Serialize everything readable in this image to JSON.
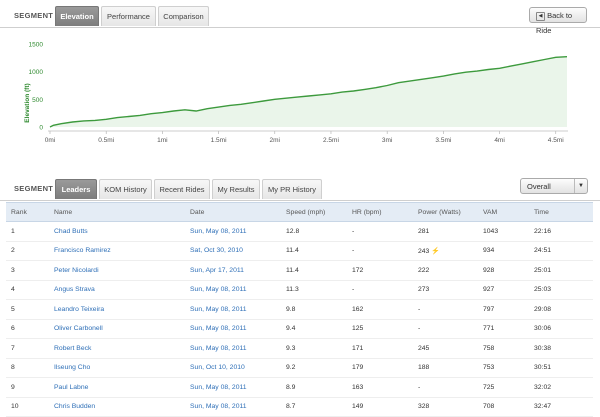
{
  "top_tabs": {
    "label": "SEGMENT",
    "tabs": [
      "Elevation",
      "Performance",
      "Comparison"
    ],
    "active": "Elevation",
    "back_button": "Back to Ride"
  },
  "chart_data": {
    "type": "area",
    "ylabel": "Elevation (ft)",
    "x_ticks": [
      "0mi",
      "0.5mi",
      "1mi",
      "1.5mi",
      "2mi",
      "2.5mi",
      "3mi",
      "3.5mi",
      "4mi",
      "4.5mi"
    ],
    "y_ticks": [
      "0",
      "500",
      "1000",
      "1500"
    ],
    "xlim": [
      0,
      4.6
    ],
    "ylim": [
      0,
      1500
    ],
    "grid": false,
    "colors": {
      "line": "#3d9a3d",
      "fill": "#eaf5ea"
    },
    "x": [
      0,
      0.03,
      0.1,
      0.2,
      0.3,
      0.4,
      0.5,
      0.6,
      0.7,
      0.8,
      0.9,
      1.0,
      1.1,
      1.2,
      1.3,
      1.4,
      1.5,
      1.6,
      1.7,
      1.8,
      1.9,
      2.0,
      2.1,
      2.2,
      2.3,
      2.4,
      2.5,
      2.6,
      2.7,
      2.8,
      2.9,
      3.0,
      3.1,
      3.2,
      3.3,
      3.4,
      3.5,
      3.6,
      3.7,
      3.8,
      3.9,
      4.0,
      4.1,
      4.2,
      4.3,
      4.4,
      4.5,
      4.6
    ],
    "y": [
      0,
      30,
      60,
      90,
      110,
      120,
      140,
      170,
      190,
      210,
      240,
      260,
      290,
      310,
      290,
      330,
      360,
      390,
      410,
      440,
      470,
      500,
      520,
      540,
      560,
      580,
      600,
      630,
      650,
      680,
      710,
      750,
      800,
      830,
      860,
      890,
      920,
      960,
      990,
      1010,
      1040,
      1060,
      1100,
      1140,
      1180,
      1220,
      1260,
      1270
    ]
  },
  "leaderboard": {
    "label": "SEGMENT",
    "tabs": [
      "Leaders",
      "KOM History",
      "Recent Rides",
      "My Results",
      "My PR History"
    ],
    "active": "Leaders",
    "filter": "Overall",
    "columns": [
      "Rank",
      "Name",
      "Date",
      "Speed (mph)",
      "HR (bpm)",
      "Power (Watts)",
      "VAM",
      "Time"
    ],
    "rows": [
      [
        "1",
        "Chad Butts",
        "Sun, May 08, 2011",
        "12.8",
        "-",
        "281",
        "1043",
        "22:16"
      ],
      [
        "2",
        "Francisco Ramirez",
        "Sat, Oct 30, 2010",
        "11.4",
        "-",
        "243",
        "934",
        "24:51"
      ],
      [
        "3",
        "Peter Nicolardi",
        "Sun, Apr 17, 2011",
        "11.4",
        "172",
        "222",
        "928",
        "25:01"
      ],
      [
        "4",
        "Angus Strava",
        "Sun, May 08, 2011",
        "11.3",
        "-",
        "273",
        "927",
        "25:03"
      ],
      [
        "5",
        "Leandro Teixeira",
        "Sun, May 08, 2011",
        "9.8",
        "162",
        "-",
        "797",
        "29:08"
      ],
      [
        "6",
        "Oliver Carbonell",
        "Sun, May 08, 2011",
        "9.4",
        "125",
        "-",
        "771",
        "30:06"
      ],
      [
        "7",
        "Robert Beck",
        "Sun, May 08, 2011",
        "9.3",
        "171",
        "245",
        "758",
        "30:38"
      ],
      [
        "8",
        "Ilseung Cho",
        "Sun, Oct 10, 2010",
        "9.2",
        "179",
        "188",
        "753",
        "30:51"
      ],
      [
        "9",
        "Paul Labne",
        "Sun, May 08, 2011",
        "8.9",
        "163",
        "-",
        "725",
        "32:02"
      ],
      [
        "10",
        "Chris Budden",
        "Sun, May 08, 2011",
        "8.7",
        "149",
        "328",
        "708",
        "32:47"
      ]
    ],
    "power_icon_rows": [
      1
    ]
  }
}
